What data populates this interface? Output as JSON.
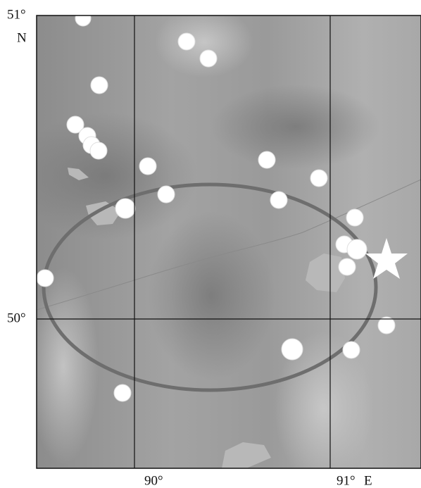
{
  "labels": {
    "lat_top": "51°",
    "north": "N",
    "lat_mid": "50°",
    "lon_left": "90°",
    "lon_right": "91°",
    "east": "E"
  }
}
